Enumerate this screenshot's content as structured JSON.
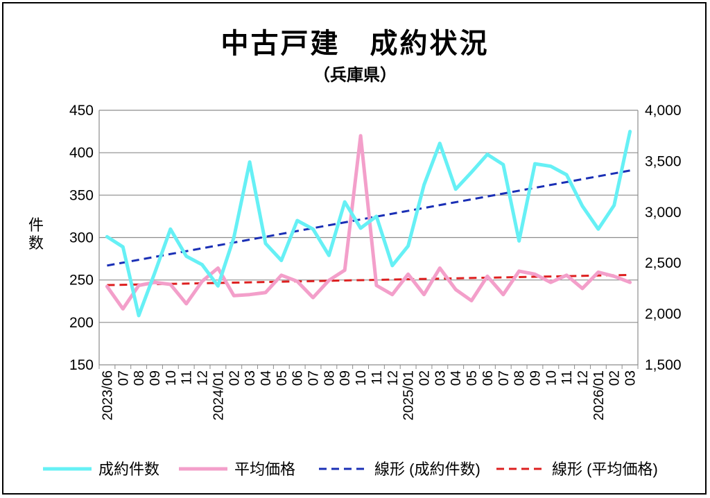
{
  "chart_data": {
    "type": "line",
    "title": "中古戸建　成約状況",
    "subtitle": "（兵庫県）",
    "ylabel": "件数",
    "y_left_lim": [
      150,
      450
    ],
    "y_left_ticks": [
      "450",
      "400",
      "350",
      "300",
      "250",
      "200",
      "150"
    ],
    "y_right_lim": [
      1500,
      4000
    ],
    "y_right_ticks": [
      "4,000",
      "3,500",
      "3,000",
      "2,500",
      "2,000",
      "1,500"
    ],
    "grid": true,
    "legend_position": "bottom",
    "categories": [
      "2023/06",
      "07",
      "08",
      "09",
      "10",
      "11",
      "12",
      "2024/01",
      "02",
      "03",
      "04",
      "05",
      "06",
      "07",
      "08",
      "09",
      "10",
      "11",
      "12",
      "2025/01",
      "02",
      "03",
      "04",
      "05",
      "06",
      "07",
      "08",
      "09",
      "10",
      "11",
      "12",
      "2026/01",
      "02",
      "03"
    ],
    "series": [
      {
        "name": "成約件数",
        "axis": "left",
        "color": "#66f0f5",
        "values": [
          301,
          289,
          208,
          258,
          310,
          278,
          268,
          243,
          300,
          389,
          293,
          273,
          320,
          310,
          279,
          342,
          311,
          325,
          267,
          290,
          362,
          411,
          357,
          377,
          398,
          386,
          296,
          387,
          384,
          374,
          337,
          310,
          338,
          425
        ]
      },
      {
        "name": "平均価格",
        "axis": "right",
        "color": "#f39fca",
        "values": [
          2270,
          2050,
          2280,
          2310,
          2290,
          2100,
          2320,
          2450,
          2180,
          2190,
          2210,
          2380,
          2320,
          2160,
          2330,
          2430,
          3750,
          2280,
          2190,
          2390,
          2190,
          2450,
          2240,
          2130,
          2370,
          2190,
          2420,
          2390,
          2310,
          2380,
          2250,
          2410,
          2370,
          2310
        ]
      }
    ],
    "trendlines": [
      {
        "name": "線形 (成約件数)",
        "axis": "left",
        "color": "#1a2fb5",
        "start": 267,
        "end": 379
      },
      {
        "name": "線形 (平均価格)",
        "axis": "right",
        "color": "#dd1f1f",
        "start": 2283,
        "end": 2383
      }
    ]
  }
}
